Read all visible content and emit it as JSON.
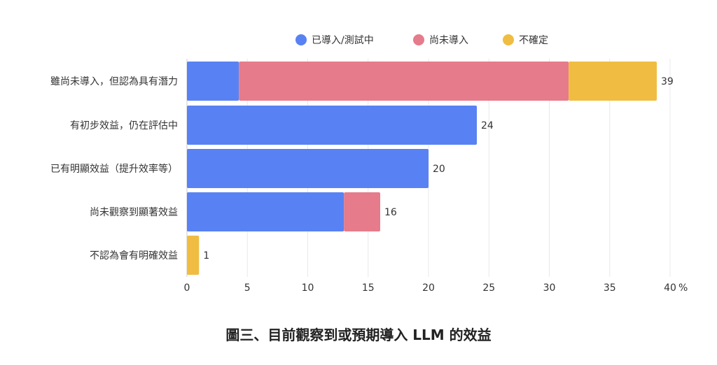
{
  "chart_data": {
    "type": "bar",
    "orientation": "horizontal",
    "stacked": true,
    "title": "圖三、目前觀察到或預期導入 LLM 的效益",
    "categories": [
      "雖尚未導入，但認為具有潛力",
      "有初步效益，仍在評估中",
      "已有明顯效益（提升效率等）",
      "尚未觀察到顯著效益",
      "不認為會有明確效益"
    ],
    "series": [
      {
        "name": "已導入/測試中",
        "color": "#5882f4",
        "values": [
          4.3,
          24,
          20,
          13,
          0
        ]
      },
      {
        "name": "尚未導入",
        "color": "#e67b8b",
        "values": [
          27.3,
          0,
          0,
          3,
          0
        ]
      },
      {
        "name": "不確定",
        "color": "#f0bd42",
        "values": [
          7.3,
          0,
          0,
          0,
          1
        ]
      }
    ],
    "totals_labels": [
      "39",
      "24",
      "20",
      "16",
      "1"
    ],
    "xticks": [
      "0",
      "5",
      "10",
      "15",
      "20",
      "25",
      "30",
      "35",
      "40"
    ],
    "xunit": "%",
    "xlim": [
      0,
      40
    ],
    "grid": true,
    "legend_position": "top-right"
  }
}
